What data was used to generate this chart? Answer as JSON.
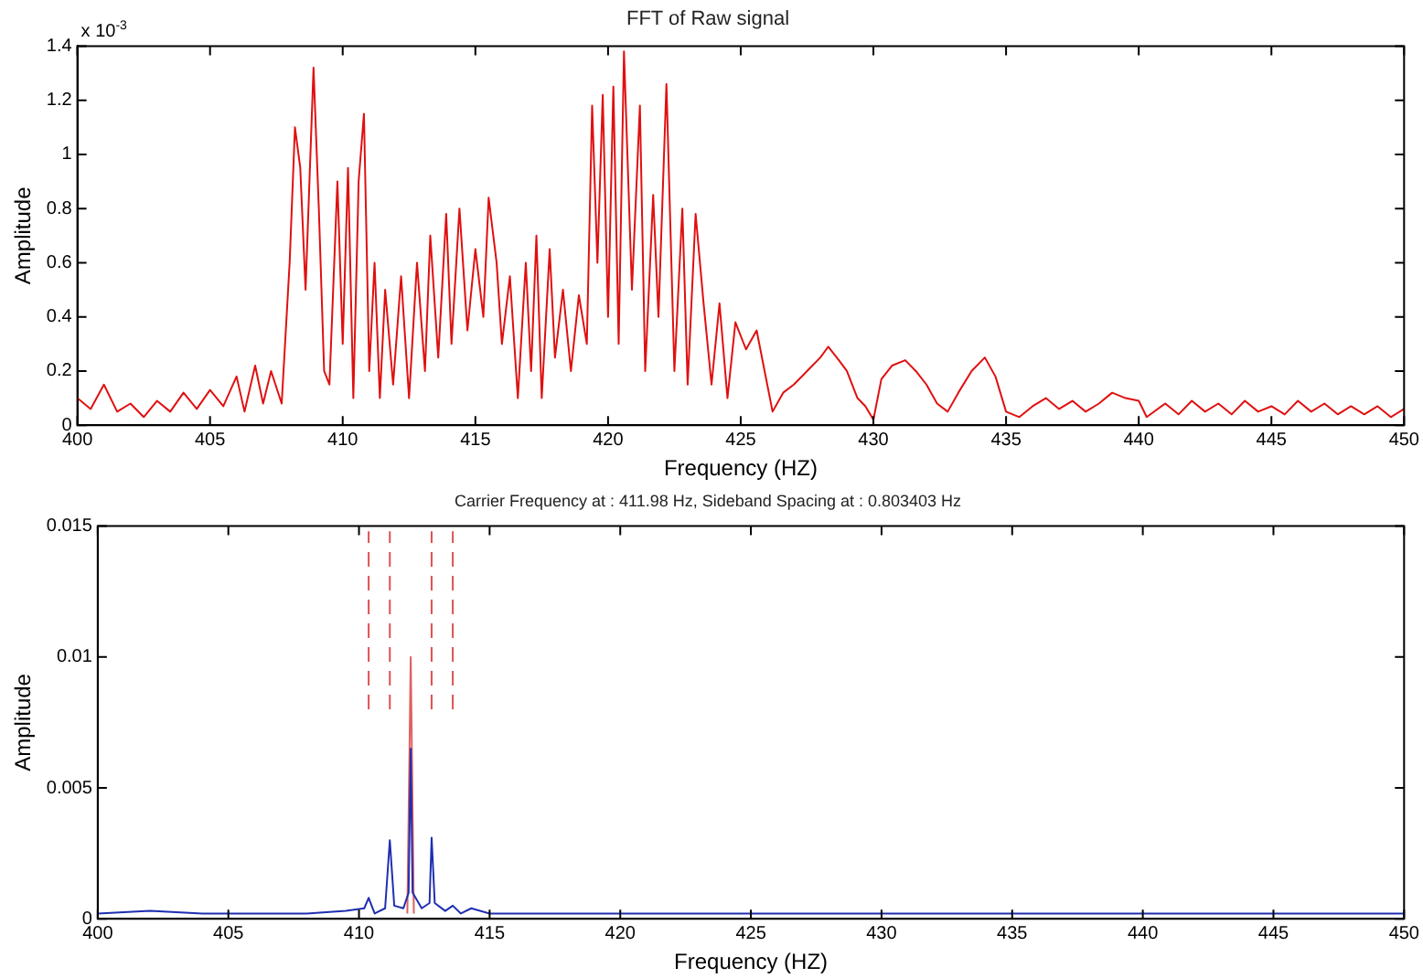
{
  "chart_data": [
    {
      "type": "line",
      "title": "FFT of Raw signal",
      "xlabel": "Frequency (HZ)",
      "ylabel": "Amplitude",
      "annotations": [
        "x 10$^{-3}$"
      ],
      "xlim": [
        400,
        450
      ],
      "xticks": [
        400,
        405,
        410,
        415,
        420,
        425,
        430,
        435,
        440,
        445,
        450
      ],
      "ylim": [
        0,
        1.4
      ],
      "yticks": [
        0,
        0.2,
        0.4,
        0.6,
        0.8,
        1,
        1.2,
        1.4
      ],
      "legend": false,
      "marker": "none",
      "series": [
        {
          "type": "line",
          "color": "#e01010",
          "line_style": "solid",
          "x": [
            400,
            400.5,
            401,
            401.5,
            402,
            402.5,
            403,
            403.5,
            404,
            404.5,
            405,
            405.5,
            406,
            406.3,
            406.7,
            407,
            407.3,
            407.7,
            408.0,
            408.2,
            408.4,
            408.6,
            408.9,
            409.1,
            409.3,
            409.5,
            409.8,
            410.0,
            410.2,
            410.4,
            410.6,
            410.8,
            411.0,
            411.2,
            411.4,
            411.6,
            411.9,
            412.2,
            412.5,
            412.8,
            413.1,
            413.3,
            413.6,
            413.9,
            414.1,
            414.4,
            414.7,
            415,
            415.3,
            415.5,
            415.8,
            416,
            416.3,
            416.6,
            416.9,
            417.1,
            417.3,
            417.5,
            417.8,
            418.0,
            418.3,
            418.6,
            418.9,
            419.2,
            419.4,
            419.6,
            419.8,
            420.0,
            420.2,
            420.4,
            420.6,
            420.9,
            421.2,
            421.4,
            421.7,
            421.9,
            422.2,
            422.5,
            422.8,
            423.0,
            423.3,
            423.6,
            423.9,
            424.2,
            424.5,
            424.8,
            425.2,
            425.6,
            425.9,
            426.2,
            426.6,
            427,
            427.5,
            428,
            428.3,
            428.7,
            429,
            429.4,
            429.7,
            430,
            430.3,
            430.7,
            431.2,
            431.6,
            432,
            432.4,
            432.8,
            433.2,
            433.7,
            434.2,
            434.6,
            435,
            435.5,
            436,
            436.5,
            437,
            437.5,
            438,
            438.5,
            439,
            439.5,
            440,
            440.3,
            441,
            441.5,
            442,
            442.5,
            443,
            443.5,
            444,
            444.5,
            445,
            445.5,
            446,
            446.5,
            447,
            447.5,
            448,
            448.5,
            449,
            449.5,
            450
          ],
          "values": [
            0.1,
            0.06,
            0.15,
            0.05,
            0.08,
            0.03,
            0.09,
            0.05,
            0.12,
            0.06,
            0.13,
            0.07,
            0.18,
            0.05,
            0.22,
            0.08,
            0.2,
            0.08,
            0.6,
            1.1,
            0.95,
            0.5,
            1.32,
            0.8,
            0.2,
            0.15,
            0.9,
            0.3,
            0.95,
            0.1,
            0.9,
            1.15,
            0.2,
            0.6,
            0.1,
            0.5,
            0.15,
            0.55,
            0.1,
            0.6,
            0.2,
            0.7,
            0.25,
            0.78,
            0.3,
            0.8,
            0.35,
            0.65,
            0.4,
            0.84,
            0.6,
            0.3,
            0.55,
            0.1,
            0.6,
            0.2,
            0.7,
            0.1,
            0.65,
            0.25,
            0.5,
            0.2,
            0.48,
            0.3,
            1.18,
            0.6,
            1.22,
            0.4,
            1.25,
            0.3,
            1.38,
            0.5,
            1.18,
            0.2,
            0.85,
            0.4,
            1.26,
            0.2,
            0.8,
            0.15,
            0.78,
            0.45,
            0.15,
            0.45,
            0.1,
            0.38,
            0.28,
            0.35,
            0.2,
            0.05,
            0.12,
            0.15,
            0.2,
            0.25,
            0.29,
            0.24,
            0.2,
            0.1,
            0.07,
            0.02,
            0.17,
            0.22,
            0.24,
            0.2,
            0.15,
            0.08,
            0.05,
            0.12,
            0.2,
            0.25,
            0.18,
            0.05,
            0.03,
            0.07,
            0.1,
            0.06,
            0.09,
            0.05,
            0.08,
            0.12,
            0.1,
            0.09,
            0.03,
            0.08,
            0.04,
            0.09,
            0.05,
            0.08,
            0.04,
            0.09,
            0.05,
            0.07,
            0.04,
            0.09,
            0.05,
            0.08,
            0.04,
            0.07,
            0.04,
            0.07,
            0.03,
            0.06
          ]
        }
      ]
    },
    {
      "type": "line",
      "title": "Carrier Frequency at : 411.98 Hz, Sideband Spacing at : 0.803403 Hz",
      "xlabel": "Frequency (HZ)",
      "ylabel": "Amplitude",
      "xlim": [
        400,
        450
      ],
      "xticks": [
        400,
        405,
        410,
        415,
        420,
        425,
        430,
        435,
        440,
        445,
        450
      ],
      "ylim": [
        0,
        0.015
      ],
      "yticks": [
        0,
        0.005,
        0.01,
        0.015
      ],
      "legend": false,
      "marker": "none",
      "series": [
        {
          "type": "line",
          "color": "#e06060",
          "line_style": "solid",
          "x": [
            411.85,
            411.98,
            412.1
          ],
          "values": [
            0.0002,
            0.01,
            0.0002
          ]
        },
        {
          "type": "line",
          "color": "#1f2fb0",
          "line_style": "solid",
          "x": [
            400,
            402,
            404,
            406,
            408,
            409.5,
            410.2,
            410.37,
            410.6,
            411.0,
            411.18,
            411.35,
            411.7,
            411.9,
            411.98,
            412.05,
            412.4,
            412.7,
            412.78,
            412.9,
            413.3,
            413.59,
            413.9,
            414.3,
            415,
            418,
            420,
            425,
            430,
            435,
            440,
            445,
            450
          ],
          "values": [
            0.0002,
            0.0003,
            0.0002,
            0.0002,
            0.0002,
            0.0003,
            0.0004,
            0.0008,
            0.0002,
            0.0004,
            0.003,
            0.0005,
            0.0004,
            0.001,
            0.0065,
            0.001,
            0.0004,
            0.0006,
            0.0031,
            0.0006,
            0.0003,
            0.0005,
            0.0002,
            0.0004,
            0.0002,
            0.0002,
            0.0002,
            0.0002,
            0.0002,
            0.0002,
            0.0002,
            0.0002,
            0.0002
          ]
        },
        {
          "type": "line",
          "color": "#e05050",
          "line_style": "dashed",
          "x": [
            410.37,
            410.37
          ],
          "values": [
            0.008,
            0.0148
          ]
        },
        {
          "type": "line",
          "color": "#e05050",
          "line_style": "dashed",
          "x": [
            411.18,
            411.18
          ],
          "values": [
            0.008,
            0.0148
          ]
        },
        {
          "type": "line",
          "color": "#e05050",
          "line_style": "dashed",
          "x": [
            412.78,
            412.78
          ],
          "values": [
            0.008,
            0.0148
          ]
        },
        {
          "type": "line",
          "color": "#e05050",
          "line_style": "dashed",
          "x": [
            413.59,
            413.59
          ],
          "values": [
            0.008,
            0.0148
          ]
        }
      ]
    }
  ]
}
